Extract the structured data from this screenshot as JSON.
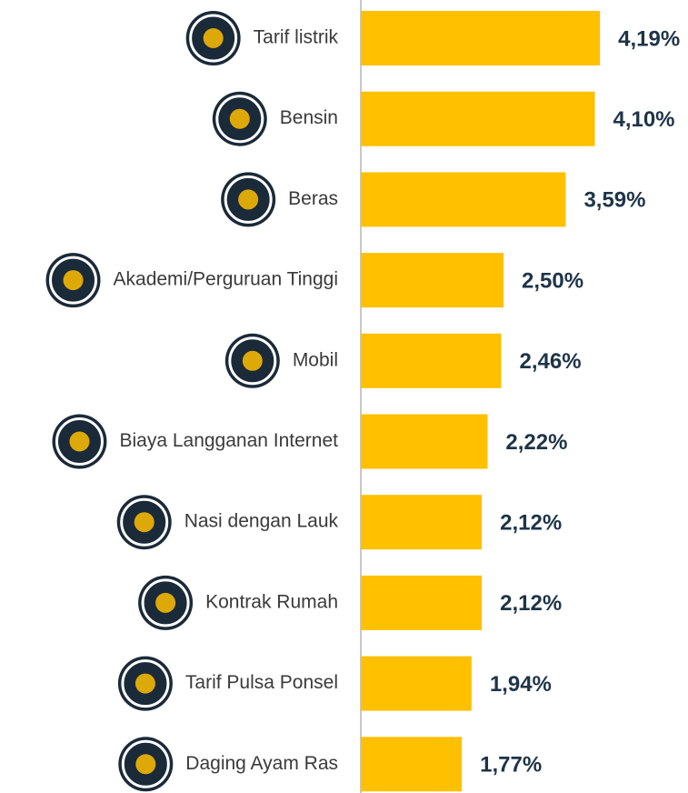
{
  "chart_data": {
    "type": "bar",
    "orientation": "horizontal",
    "categories": [
      "Tarif listrik",
      "Bensin",
      "Beras",
      "Akademi/Perguruan Tinggi",
      "Mobil",
      "Biaya Langganan Internet",
      "Nasi dengan Lauk",
      "Kontrak Rumah",
      "Tarif Pulsa Ponsel",
      "Daging Ayam Ras"
    ],
    "values": [
      4.19,
      4.1,
      3.59,
      2.5,
      2.46,
      2.22,
      2.12,
      2.12,
      1.94,
      1.77
    ],
    "value_labels": [
      "4,19%",
      "4,10%",
      "3,59%",
      "2,50%",
      "2,46%",
      "2,22%",
      "2,12%",
      "2,12%",
      "1,94%",
      "1,77%"
    ],
    "color": "#ffc000"
  }
}
